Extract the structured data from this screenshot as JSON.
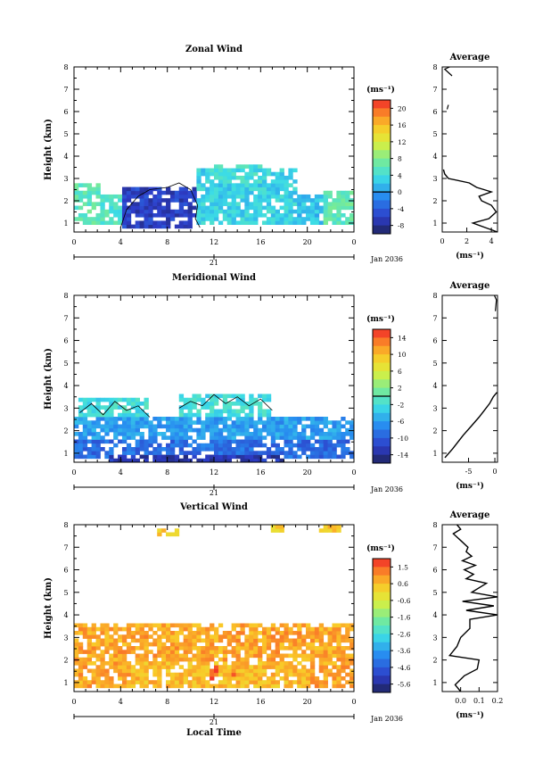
{
  "common": {
    "date_label": "Jan 2036",
    "day_label": "21",
    "height_axis_label": "Height (km)",
    "unit_label": "(ms⁻¹)",
    "avg_title": "Average",
    "avg_unit_label": "(ms⁻¹)",
    "x_ticks": [
      "0",
      "4",
      "8",
      "12",
      "16",
      "20",
      "0"
    ],
    "y_ticks": [
      "1",
      "2",
      "3",
      "4",
      "5",
      "6",
      "7",
      "8"
    ],
    "x_axis_title": "Local Time"
  },
  "chart_data": [
    {
      "type": "heatmap",
      "title": "Zonal Wind",
      "xlabel": "",
      "ylabel": "Height (km)",
      "x_range": [
        0,
        24
      ],
      "y_range": [
        0.6,
        8.0
      ],
      "colorbar_ticks": [
        "20",
        "16",
        "12",
        "8",
        "4",
        "0",
        "-4",
        "-8"
      ],
      "colorbar_range": [
        -10,
        22
      ],
      "zero_contour": 0,
      "regions": [
        {
          "x": [
            0,
            2.2
          ],
          "y": [
            0.9,
            2.8
          ],
          "value": 6
        },
        {
          "x": [
            2.2,
            4
          ],
          "y": [
            0.9,
            2.3
          ],
          "value": 5
        },
        {
          "x": [
            4,
            10.5
          ],
          "y": [
            0.7,
            2.7
          ],
          "value": -6
        },
        {
          "x": [
            10.5,
            19
          ],
          "y": [
            0.9,
            3.5
          ],
          "value": 3
        },
        {
          "x": [
            11.5,
            16
          ],
          "y": [
            2.8,
            3.6
          ],
          "value": 4
        },
        {
          "x": [
            19,
            22
          ],
          "y": [
            0.9,
            2.3
          ],
          "value": 2
        },
        {
          "x": [
            21.5,
            24
          ],
          "y": [
            0.9,
            2.5
          ],
          "value": 6
        }
      ],
      "average": {
        "xlim": [
          0,
          4.5
        ],
        "x_ticks": [
          "0",
          "2",
          "4"
        ],
        "profile": [
          [
            0.6,
            4.5
          ],
          [
            0.8,
            3.5
          ],
          [
            1.0,
            2.5
          ],
          [
            1.2,
            3.8
          ],
          [
            1.5,
            4.4
          ],
          [
            1.8,
            4.0
          ],
          [
            2.0,
            3.2
          ],
          [
            2.2,
            3.0
          ],
          [
            2.4,
            4.0
          ],
          [
            2.6,
            2.8
          ],
          [
            2.8,
            2.2
          ],
          [
            3.0,
            0.5
          ],
          [
            3.2,
            0.2
          ],
          [
            3.4,
            0.1
          ]
        ],
        "fragments": [
          [
            [
              6.1,
              0.4
            ],
            [
              6.3,
              0.5
            ]
          ],
          [
            [
              7.6,
              0.8
            ],
            [
              7.9,
              0.2
            ],
            [
              8.0,
              0.6
            ]
          ]
        ]
      }
    },
    {
      "type": "heatmap",
      "title": "Meridional Wind",
      "xlabel": "",
      "ylabel": "Height (km)",
      "x_range": [
        0,
        24
      ],
      "y_range": [
        0.6,
        8.0
      ],
      "colorbar_ticks": [
        "14",
        "10",
        "6",
        "2",
        "-2",
        "-6",
        "-10",
        "-14"
      ],
      "colorbar_range": [
        -16,
        16
      ],
      "zero_contour": 0,
      "regions": [
        {
          "x": [
            0.5,
            6.5
          ],
          "y": [
            2.5,
            3.4
          ],
          "value": -2
        },
        {
          "x": [
            9,
            17
          ],
          "y": [
            2.6,
            3.6
          ],
          "value": -2
        },
        {
          "x": [
            17,
            24
          ],
          "y": [
            2.2,
            2.7
          ],
          "value": -3
        },
        {
          "x": [
            0,
            24
          ],
          "y": [
            1.5,
            2.6
          ],
          "value": -6
        },
        {
          "x": [
            0,
            24
          ],
          "y": [
            0.8,
            1.6
          ],
          "value": -9
        },
        {
          "x": [
            3,
            18
          ],
          "y": [
            0.6,
            1.0
          ],
          "value": -13
        }
      ],
      "average": {
        "xlim": [
          -10,
          0.5
        ],
        "x_ticks": [
          "-5",
          "0"
        ],
        "profile": [
          [
            0.8,
            -9.5
          ],
          [
            1.2,
            -8
          ],
          [
            1.8,
            -6
          ],
          [
            2.2,
            -4.5
          ],
          [
            2.6,
            -3
          ],
          [
            2.9,
            -2
          ],
          [
            3.2,
            -1
          ],
          [
            3.5,
            -0.3
          ],
          [
            3.7,
            0.4
          ]
        ],
        "fragments": [
          [
            [
              7.3,
              0.1
            ],
            [
              7.8,
              0.3
            ],
            [
              8.0,
              -0.1
            ]
          ]
        ]
      }
    },
    {
      "type": "heatmap",
      "title": "Vertical Wind",
      "xlabel": "Local Time",
      "ylabel": "Height (km)",
      "x_range": [
        0,
        24
      ],
      "y_range": [
        0.6,
        8.0
      ],
      "colorbar_ticks": [
        "1.5",
        "0.6",
        "-0.6",
        "-1.6",
        "-2.6",
        "-3.6",
        "-4.6",
        "-5.6"
      ],
      "colorbar_range": [
        -6,
        2
      ],
      "zero_contour": null,
      "regions": [
        {
          "x": [
            0,
            24
          ],
          "y": [
            0.8,
            3.6
          ],
          "value": 0.8
        },
        {
          "x": [
            5,
            20
          ],
          "y": [
            0.8,
            2.0
          ],
          "value": 0.5
        },
        {
          "x": [
            11.5,
            12.5
          ],
          "y": [
            1.0,
            1.8
          ],
          "value": 1.4
        },
        {
          "x": [
            13.5,
            14
          ],
          "y": [
            1.2,
            1.6
          ],
          "value": 1.2
        },
        {
          "x": [
            7,
            9
          ],
          "y": [
            7.5,
            7.9
          ],
          "value": 0.4
        },
        {
          "x": [
            17,
            18
          ],
          "y": [
            7.7,
            8.0
          ],
          "value": 0.3
        },
        {
          "x": [
            21,
            23
          ],
          "y": [
            7.6,
            8.0
          ],
          "value": 0.4
        }
      ],
      "average": {
        "xlim": [
          -0.1,
          0.2
        ],
        "x_ticks": [
          "0.0",
          "0.1",
          "0.2"
        ],
        "profile": [
          [
            0.6,
            0.0
          ],
          [
            0.9,
            -0.03
          ],
          [
            1.3,
            0.02
          ],
          [
            1.6,
            0.09
          ],
          [
            2.0,
            0.1
          ],
          [
            2.2,
            -0.06
          ],
          [
            2.6,
            -0.02
          ],
          [
            3.0,
            0.0
          ],
          [
            3.4,
            0.05
          ],
          [
            3.8,
            0.05
          ],
          [
            4.0,
            0.2
          ],
          [
            4.2,
            0.03
          ],
          [
            4.4,
            0.18
          ],
          [
            4.6,
            0.01
          ],
          [
            4.8,
            0.2
          ],
          [
            5.0,
            0.06
          ],
          [
            5.4,
            0.14
          ],
          [
            5.6,
            0.03
          ],
          [
            5.8,
            0.07
          ],
          [
            6.0,
            0.02
          ],
          [
            6.2,
            0.08
          ],
          [
            6.4,
            0.01
          ],
          [
            6.6,
            0.06
          ],
          [
            6.8,
            0.03
          ],
          [
            7.0,
            0.04
          ],
          [
            7.3,
            0.0
          ],
          [
            7.6,
            -0.04
          ],
          [
            7.8,
            0.0
          ],
          [
            8.0,
            -0.02
          ]
        ],
        "fragments": []
      }
    }
  ]
}
